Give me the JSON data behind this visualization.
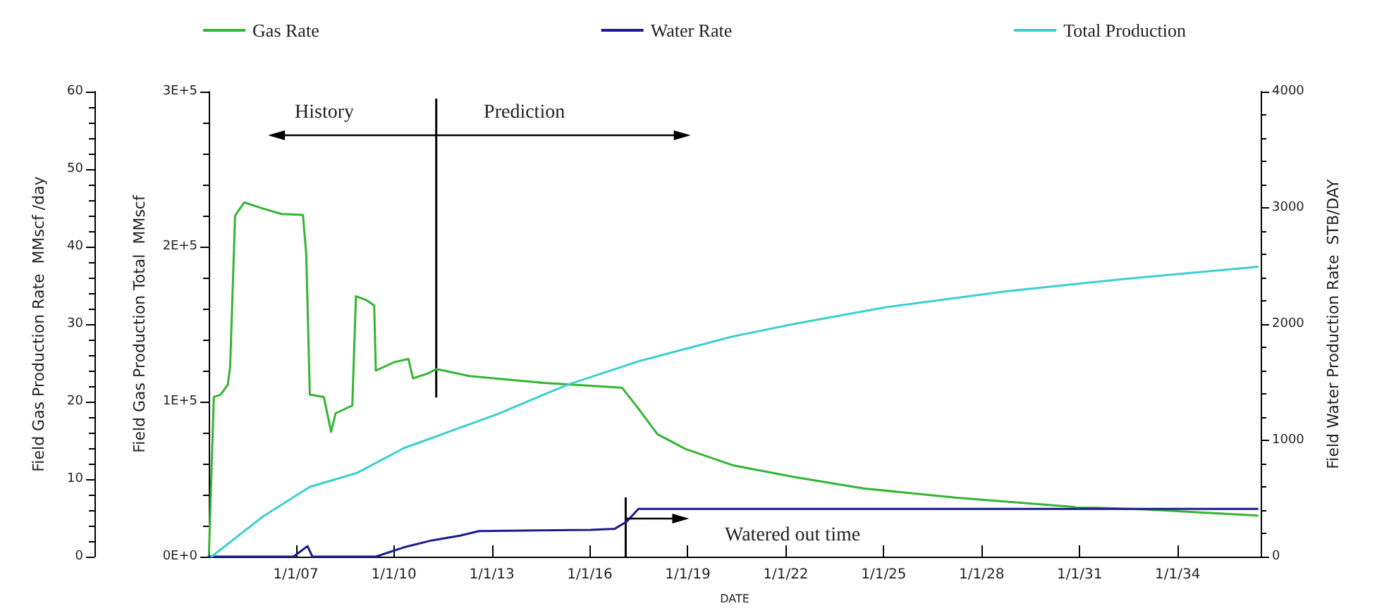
{
  "chart_data": {
    "type": "line",
    "xlabel": "DATE",
    "ylabel": "Field Gas Production Rate  MMscf /day",
    "y2label": "Field Gas Production Total  MMscf",
    "y3label": "Field Water Production Rate  STB/DAY",
    "xlim": [
      "2004-05-01",
      "2036-07-18"
    ],
    "xticks": [
      {
        "value": "2007-01-01",
        "label": "1/1/07"
      },
      {
        "value": "2010-01-01",
        "label": "1/1/10"
      },
      {
        "value": "2013-01-01",
        "label": "1/1/13"
      },
      {
        "value": "2016-01-01",
        "label": "1/1/16"
      },
      {
        "value": "2019-01-01",
        "label": "1/1/19"
      },
      {
        "value": "2022-01-01",
        "label": "1/1/22"
      },
      {
        "value": "2025-01-01",
        "label": "1/1/25"
      },
      {
        "value": "2028-01-01",
        "label": "1/1/28"
      },
      {
        "value": "2031-01-01",
        "label": "1/1/31"
      },
      {
        "value": "2034-01-01",
        "label": "1/1/34"
      }
    ],
    "ylim": [
      0,
      60
    ],
    "yticks": [
      0,
      10,
      20,
      30,
      40,
      50,
      60
    ],
    "y2lim": [
      0,
      300000
    ],
    "y2ticks": [
      {
        "value": 0,
        "label": "0E+0"
      },
      {
        "value": 100000,
        "label": "1E+5"
      },
      {
        "value": 200000,
        "label": "2E+5"
      },
      {
        "value": 300000,
        "label": "3E+5"
      }
    ],
    "y3lim": [
      0,
      4000
    ],
    "y3ticks": [
      0,
      1000,
      2000,
      3000,
      4000
    ],
    "legend": "top",
    "grid": false,
    "marker": "none",
    "line_style": "solid",
    "ref_lines": [
      {
        "axis": "x",
        "value": "2011-04-20"
      },
      {
        "axis": "x",
        "value": "2017-02-06"
      }
    ],
    "annotations": [
      "History",
      "Prediction",
      "Watered out time"
    ],
    "series": [
      {
        "name": "Gas Rate",
        "color": "#33b533",
        "x": [
          "2004-05-03",
          "2004-06-27",
          "2004-09-12",
          "2004-12-01",
          "2004-12-27",
          "2005-02-20",
          "2005-06-02",
          "2006-01-01",
          "2006-07-27",
          "2007-03-21",
          "2007-04-27",
          "2007-06-06",
          "2007-11-10",
          "2008-01-30",
          "2008-03-21",
          "2008-09-23",
          "2008-11-03",
          "2009-02-27",
          "2009-05-26",
          "2009-06-13",
          "2010-01-08",
          "2010-06-13",
          "2010-08-03",
          "2011-01-08",
          "2011-04-23",
          "2012-04-27",
          "2014-08-14",
          "2016-12-27",
          "2017-06-28",
          "2018-01-26",
          "2018-12-05",
          "2020-05-15",
          "2022-03-25",
          "2024-05-21",
          "2027-04-05",
          "2030-11-06",
          "2033-01-01",
          "2036-06-13"
        ],
        "values": [
          0,
          20.6,
          20.9,
          22.2,
          24.5,
          44,
          45.7,
          44.9,
          44.2,
          44.1,
          39,
          20.9,
          20.6,
          16.1,
          18.5,
          19.5,
          33.6,
          33.1,
          32.4,
          24,
          25.1,
          25.5,
          23,
          23.6,
          24.2,
          23.3,
          22.4,
          21.8,
          19.1,
          15.8,
          13.9,
          11.8,
          10.3,
          8.8,
          7.6,
          6.4,
          6.1,
          5.3
        ]
      },
      {
        "name": "Water Rate",
        "color": "#1c1c8c",
        "axis": "y3",
        "x": [
          "2004-05-03",
          "2006-12-05",
          "2007-05-11",
          "2007-07-05",
          "2009-06-13",
          "2010-04-23",
          "2011-03-03",
          "2012-01-11",
          "2012-08-10",
          "2016-01-18",
          "2016-10-07",
          "2017-02-16",
          "2017-06-28",
          "2036-06-13"
        ],
        "values": [
          0,
          0,
          90,
          0,
          0,
          80,
          140,
          180,
          220,
          230,
          240,
          300,
          410,
          410
        ]
      },
      {
        "name": "Total Production",
        "color": "#3ccfcf",
        "axis": "y2",
        "x": [
          "2004-06-02",
          "2006-01-01",
          "2007-06-06",
          "2008-11-14",
          "2010-04-23",
          "2013-03-07",
          "2015-04-30",
          "2017-06-28",
          "2020-05-15",
          "2022-03-25",
          "2025-02-06",
          "2028-09-12",
          "2032-04-16",
          "2036-06-13"
        ],
        "values": [
          0,
          26000,
          45000,
          54000,
          70000,
          92000,
          111000,
          126000,
          142000,
          150000,
          161000,
          171000,
          179000,
          187000
        ]
      }
    ]
  }
}
